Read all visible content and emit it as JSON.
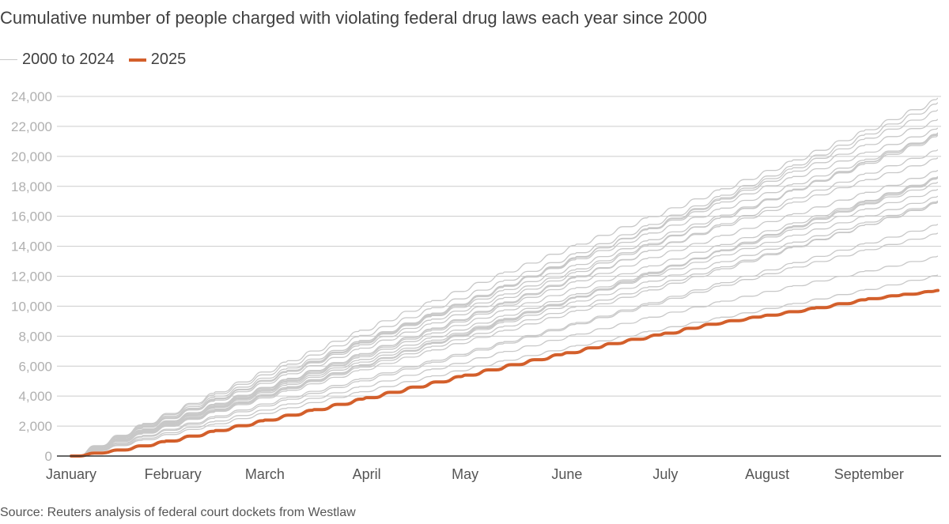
{
  "header": {
    "title": "Cumulative number of people charged with violating federal drug laws each year since 2000"
  },
  "legend": {
    "historic_label": "2000 to 2024",
    "current_label": "2025"
  },
  "footer": {
    "source": "Source: Reuters analysis of federal court dockets from Westlaw"
  },
  "colors": {
    "historic": "#c8c8c8",
    "current": "#d35f2b",
    "grid": "#cccccc",
    "axis": "#333333",
    "tick_label": "#b0b0b0",
    "month_label": "#555555"
  },
  "chart_data": {
    "type": "line",
    "title": "Cumulative number of people charged with violating federal drug laws each year since 2000",
    "xlabel": "",
    "ylabel": "",
    "x_unit": "day of year",
    "xlim": [
      1,
      265
    ],
    "ylim": [
      0,
      24000
    ],
    "grid": true,
    "legend_position": "top-left",
    "y_ticks": [
      0,
      2000,
      4000,
      6000,
      8000,
      10000,
      12000,
      14000,
      16000,
      18000,
      20000,
      22000,
      24000
    ],
    "y_tick_labels": [
      "0",
      "2,000",
      "4,000",
      "6,000",
      "8,000",
      "10,000",
      "12,000",
      "14,000",
      "16,000",
      "18,000",
      "20,000",
      "22,000",
      "24,000"
    ],
    "x_ticks": [
      {
        "label": "January",
        "day": 1
      },
      {
        "label": "February",
        "day": 32
      },
      {
        "label": "March",
        "day": 60
      },
      {
        "label": "April",
        "day": 91
      },
      {
        "label": "May",
        "day": 121
      },
      {
        "label": "June",
        "day": 152
      },
      {
        "label": "July",
        "day": 182
      },
      {
        "label": "August",
        "day": 213
      },
      {
        "label": "September",
        "day": 244
      }
    ],
    "series_group_label": "2000 to 2024",
    "historic_final_values_at_day_265": [
      24000,
      23300,
      22700,
      22300,
      22100,
      21900,
      21600,
      21400,
      21100,
      20200,
      20000,
      19400,
      18900,
      18500,
      18300,
      18000,
      17800,
      17600,
      17300,
      17000,
      16700,
      15200,
      14800,
      13500,
      12300
    ],
    "current_series": {
      "name": "2025",
      "x": [
        1,
        15,
        30,
        45,
        60,
        75,
        91,
        105,
        121,
        135,
        152,
        165,
        182,
        195,
        213,
        228,
        244,
        255,
        265
      ],
      "y": [
        0,
        400,
        1000,
        1700,
        2400,
        3100,
        3900,
        4600,
        5400,
        6100,
        6900,
        7500,
        8200,
        8800,
        9400,
        9900,
        10500,
        10800,
        11050
      ]
    }
  }
}
